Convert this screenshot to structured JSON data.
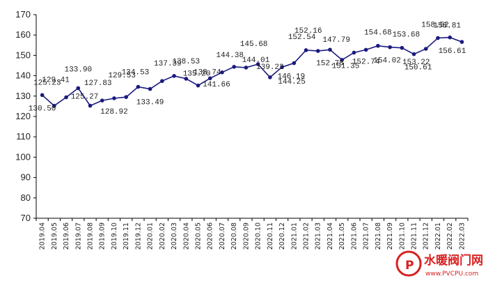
{
  "chart_data": {
    "type": "line",
    "title": "",
    "xlabel": "",
    "ylabel": "",
    "ylim": [
      70,
      170
    ],
    "yticks": [
      70,
      80,
      90,
      100,
      110,
      120,
      130,
      140,
      150,
      160,
      170
    ],
    "grid": false,
    "legend": "none",
    "series_color": "#1a1a80",
    "categories": [
      "2019.04",
      "2019.05",
      "2019.06",
      "2019.07",
      "2019.08",
      "2019.09",
      "2019.10",
      "2019.11",
      "2019.12",
      "2020.01",
      "2020.02",
      "2020.03",
      "2020.04",
      "2020.05",
      "2020.06",
      "2020.07",
      "2020.08",
      "2020.09",
      "2020.10",
      "2020.11",
      "2020.12",
      "2021.01",
      "2021.02",
      "2021.03",
      "2021.04",
      "2021.05",
      "2021.06",
      "2021.07",
      "2021.08",
      "2021.09",
      "2021.10",
      "2021.11",
      "2021.12",
      "2022.01",
      "2022.02",
      "2022.03"
    ],
    "series": [
      {
        "values": [
          130.5,
          125.23,
          129.41,
          133.9,
          125.27,
          127.83,
          128.92,
          129.53,
          134.53,
          133.49,
          137.39,
          139.9,
          138.53,
          135.2,
          138.74,
          141.66,
          144.38,
          144.01,
          145.68,
          139.22,
          144.25,
          146.19,
          152.54,
          152.16,
          152.78,
          147.79,
          151.35,
          152.74,
          154.68,
          154.02,
          153.68,
          150.61,
          153.22,
          158.52,
          158.81,
          156.61
        ],
        "labels": [
          "130.50",
          "125.23",
          "129.41",
          "133.90",
          "125.27",
          "127.83",
          "128.92",
          "129.53",
          "134.53",
          "133.49",
          "137.39",
          "",
          "138.53",
          "135.20",
          "138.74",
          "141.66",
          "144.38",
          "144.01",
          "145.68",
          "139.22",
          "144.25",
          "146.19",
          "152.54",
          "152.16",
          "152.78",
          "147.79",
          "151.35",
          "152.74",
          "154.68",
          "154.02",
          "153.68",
          "150.61",
          "153.22",
          "158.52",
          "158.81",
          "156.61"
        ]
      }
    ]
  },
  "watermark": {
    "text": "水暖阀门网",
    "url": "www.PVCPU.com",
    "color": "#d82020"
  }
}
